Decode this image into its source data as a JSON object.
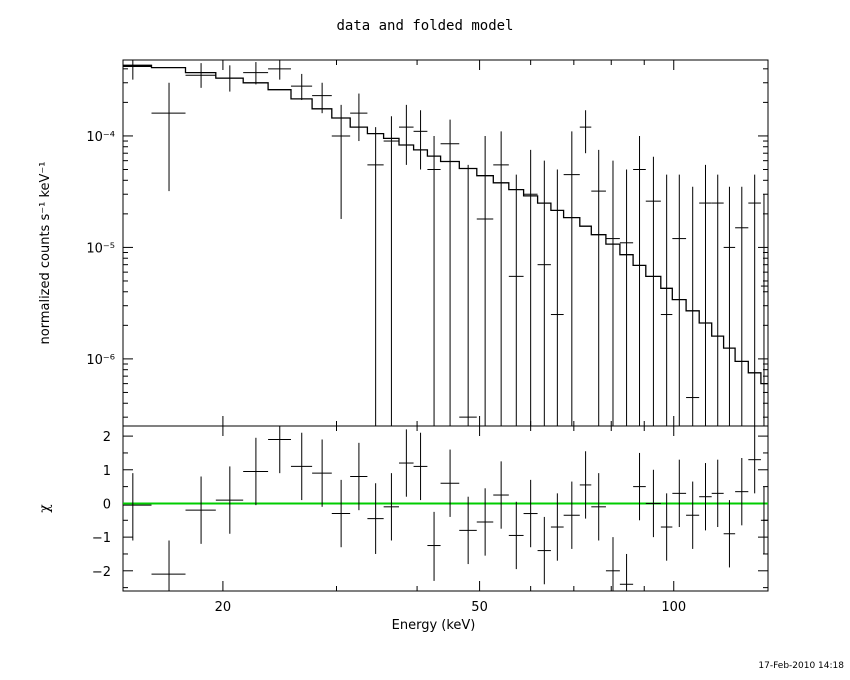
{
  "chart_data": {
    "type": "scatter",
    "title": "data and folded model",
    "timestamp": "17-Feb-2010 14:18",
    "xlabel": "Energy (keV)",
    "xscale": "log",
    "xlim": [
      14.0,
      140.0
    ],
    "xticks": [
      20,
      50,
      100
    ],
    "top_panel": {
      "ylabel": "normalized counts s⁻¹ keV⁻¹",
      "yscale": "log",
      "ylim": [
        2.5e-07,
        0.00048
      ],
      "ytick_labels": [
        "10⁻⁴",
        "10⁻⁵",
        "10⁻⁶"
      ],
      "yticks": [
        0.0001,
        1e-05,
        1e-06
      ],
      "data": [
        {
          "x": 14.5,
          "xlo": 14.0,
          "xhi": 15.5,
          "y": 0.00042,
          "ylo": 0.00032,
          "yhi": 0.00048
        },
        {
          "x": 16.5,
          "xlo": 15.5,
          "xhi": 17.5,
          "y": 0.00016,
          "ylo": 3.2e-05,
          "yhi": 0.0003
        },
        {
          "x": 18.5,
          "xlo": 17.5,
          "xhi": 19.5,
          "y": 0.00035,
          "ylo": 0.00027,
          "yhi": 0.00045
        },
        {
          "x": 20.5,
          "xlo": 19.5,
          "xhi": 21.5,
          "y": 0.00033,
          "ylo": 0.00025,
          "yhi": 0.00043
        },
        {
          "x": 22.5,
          "xlo": 21.5,
          "xhi": 23.5,
          "y": 0.00037,
          "ylo": 0.00029,
          "yhi": 0.00046
        },
        {
          "x": 24.5,
          "xlo": 23.5,
          "xhi": 25.5,
          "y": 0.0004,
          "ylo": 0.00032,
          "yhi": 0.00048
        },
        {
          "x": 26.5,
          "xlo": 25.5,
          "xhi": 27.5,
          "y": 0.00028,
          "ylo": 0.00021,
          "yhi": 0.00036
        },
        {
          "x": 28.5,
          "xlo": 27.5,
          "xhi": 29.5,
          "y": 0.00023,
          "ylo": 0.00016,
          "yhi": 0.0003
        },
        {
          "x": 30.5,
          "xlo": 29.5,
          "xhi": 31.5,
          "y": 0.0001,
          "ylo": 1.8e-05,
          "yhi": 0.00019
        },
        {
          "x": 32.5,
          "xlo": 31.5,
          "xhi": 33.5,
          "y": 0.00016,
          "ylo": 9e-05,
          "yhi": 0.00024
        },
        {
          "x": 34.5,
          "xlo": 33.5,
          "xhi": 35.5,
          "y": 5.5e-05,
          "ylo": 2.5e-07,
          "yhi": 0.00012
        },
        {
          "x": 36.5,
          "xlo": 35.5,
          "xhi": 37.5,
          "y": 9e-05,
          "ylo": 2.5e-07,
          "yhi": 0.00015
        },
        {
          "x": 38.5,
          "xlo": 37.5,
          "xhi": 39.5,
          "y": 0.00012,
          "ylo": 5.5e-05,
          "yhi": 0.00019
        },
        {
          "x": 40.5,
          "xlo": 39.5,
          "xhi": 41.5,
          "y": 0.00011,
          "ylo": 5e-05,
          "yhi": 0.00017
        },
        {
          "x": 42.5,
          "xlo": 41.5,
          "xhi": 43.5,
          "y": 5e-05,
          "ylo": 2.5e-07,
          "yhi": 0.0001
        },
        {
          "x": 45.0,
          "xlo": 43.5,
          "xhi": 46.5,
          "y": 8.5e-05,
          "ylo": 2.5e-07,
          "yhi": 0.00014
        },
        {
          "x": 48.0,
          "xlo": 46.5,
          "xhi": 49.5,
          "y": 3e-07,
          "ylo": 2.5e-07,
          "yhi": 5.5e-05
        },
        {
          "x": 51.0,
          "xlo": 49.5,
          "xhi": 52.5,
          "y": 1.8e-05,
          "ylo": 2.5e-07,
          "yhi": 0.0001
        },
        {
          "x": 54.0,
          "xlo": 52.5,
          "xhi": 55.5,
          "y": 5.5e-05,
          "ylo": 2.5e-07,
          "yhi": 0.00011
        },
        {
          "x": 57.0,
          "xlo": 55.5,
          "xhi": 58.5,
          "y": 5.5e-06,
          "ylo": 2.5e-07,
          "yhi": 4.5e-05
        },
        {
          "x": 60.0,
          "xlo": 58.5,
          "xhi": 61.5,
          "y": 3e-05,
          "ylo": 2.5e-07,
          "yhi": 7.5e-05
        },
        {
          "x": 63.0,
          "xlo": 61.5,
          "xhi": 64.5,
          "y": 7e-06,
          "ylo": 2.5e-07,
          "yhi": 6e-05
        },
        {
          "x": 66.0,
          "xlo": 64.5,
          "xhi": 67.5,
          "y": 2.5e-06,
          "ylo": 2.5e-07,
          "yhi": 5e-05
        },
        {
          "x": 69.5,
          "xlo": 67.5,
          "xhi": 71.5,
          "y": 4.5e-05,
          "ylo": 2.5e-07,
          "yhi": 0.00011
        },
        {
          "x": 73.0,
          "xlo": 71.5,
          "xhi": 74.5,
          "y": 0.00012,
          "ylo": 7e-05,
          "yhi": 0.00017
        },
        {
          "x": 76.5,
          "xlo": 74.5,
          "xhi": 78.5,
          "y": 3.2e-05,
          "ylo": 2.5e-07,
          "yhi": 7.5e-05
        },
        {
          "x": 80.5,
          "xlo": 78.5,
          "xhi": 82.5,
          "y": 1.2e-05,
          "ylo": 2.5e-07,
          "yhi": 6e-05
        },
        {
          "x": 84.5,
          "xlo": 82.5,
          "xhi": 86.5,
          "y": 1.1e-05,
          "ylo": 2.5e-07,
          "yhi": 5e-05
        },
        {
          "x": 88.5,
          "xlo": 86.5,
          "xhi": 90.5,
          "y": 5e-05,
          "ylo": 2.5e-07,
          "yhi": 0.0001
        },
        {
          "x": 93.0,
          "xlo": 90.5,
          "xhi": 95.5,
          "y": 2.6e-05,
          "ylo": 2.5e-07,
          "yhi": 6.5e-05
        },
        {
          "x": 97.5,
          "xlo": 95.5,
          "xhi": 99.5,
          "y": 2.5e-06,
          "ylo": 2.5e-07,
          "yhi": 4.5e-05
        },
        {
          "x": 102.0,
          "xlo": 99.5,
          "xhi": 104.5,
          "y": 1.2e-05,
          "ylo": 2.5e-07,
          "yhi": 4.5e-05
        },
        {
          "x": 107.0,
          "xlo": 104.5,
          "xhi": 109.5,
          "y": 4.5e-07,
          "ylo": 2.5e-07,
          "yhi": 3.5e-05
        },
        {
          "x": 112.0,
          "xlo": 109.5,
          "xhi": 114.5,
          "y": 2.5e-05,
          "ylo": 2.5e-07,
          "yhi": 5.5e-05
        },
        {
          "x": 117.0,
          "xlo": 114.5,
          "xhi": 119.5,
          "y": 2.5e-05,
          "ylo": 2.5e-07,
          "yhi": 4.5e-05
        },
        {
          "x": 122.0,
          "xlo": 119.5,
          "xhi": 124.5,
          "y": 1e-05,
          "ylo": 2.5e-07,
          "yhi": 3.5e-05
        },
        {
          "x": 127.5,
          "xlo": 124.5,
          "xhi": 130.5,
          "y": 1.5e-05,
          "ylo": 2.5e-07,
          "yhi": 3.5e-05
        },
        {
          "x": 133.5,
          "xlo": 130.5,
          "xhi": 136.5,
          "y": 2.5e-05,
          "ylo": 2.5e-07,
          "yhi": 4.5e-05
        },
        {
          "x": 138.0,
          "xlo": 136.5,
          "xhi": 140.0,
          "y": 4.5e-06,
          "ylo": 2.5e-07,
          "yhi": 3e-05
        }
      ],
      "model": [
        {
          "x0": 14.0,
          "x1": 15.5,
          "y": 0.00043
        },
        {
          "x0": 15.5,
          "x1": 17.5,
          "y": 0.00041
        },
        {
          "x0": 17.5,
          "x1": 19.5,
          "y": 0.00037
        },
        {
          "x0": 19.5,
          "x1": 21.5,
          "y": 0.00033
        },
        {
          "x0": 21.5,
          "x1": 23.5,
          "y": 0.0003
        },
        {
          "x0": 23.5,
          "x1": 25.5,
          "y": 0.00026
        },
        {
          "x0": 25.5,
          "x1": 27.5,
          "y": 0.000215
        },
        {
          "x0": 27.5,
          "x1": 29.5,
          "y": 0.000175
        },
        {
          "x0": 29.5,
          "x1": 31.5,
          "y": 0.000145
        },
        {
          "x0": 31.5,
          "x1": 33.5,
          "y": 0.00012
        },
        {
          "x0": 33.5,
          "x1": 35.5,
          "y": 0.000105
        },
        {
          "x0": 35.5,
          "x1": 37.5,
          "y": 9.5e-05
        },
        {
          "x0": 37.5,
          "x1": 39.5,
          "y": 8.3e-05
        },
        {
          "x0": 39.5,
          "x1": 41.5,
          "y": 7.5e-05
        },
        {
          "x0": 41.5,
          "x1": 43.5,
          "y": 6.6e-05
        },
        {
          "x0": 43.5,
          "x1": 46.5,
          "y": 5.9e-05
        },
        {
          "x0": 46.5,
          "x1": 49.5,
          "y": 5.1e-05
        },
        {
          "x0": 49.5,
          "x1": 52.5,
          "y": 4.4e-05
        },
        {
          "x0": 52.5,
          "x1": 55.5,
          "y": 3.8e-05
        },
        {
          "x0": 55.5,
          "x1": 58.5,
          "y": 3.3e-05
        },
        {
          "x0": 58.5,
          "x1": 61.5,
          "y": 2.9e-05
        },
        {
          "x0": 61.5,
          "x1": 64.5,
          "y": 2.5e-05
        },
        {
          "x0": 64.5,
          "x1": 67.5,
          "y": 2.15e-05
        },
        {
          "x0": 67.5,
          "x1": 71.5,
          "y": 1.85e-05
        },
        {
          "x0": 71.5,
          "x1": 74.5,
          "y": 1.55e-05
        },
        {
          "x0": 74.5,
          "x1": 78.5,
          "y": 1.3e-05
        },
        {
          "x0": 78.5,
          "x1": 82.5,
          "y": 1.07e-05
        },
        {
          "x0": 82.5,
          "x1": 86.5,
          "y": 8.6e-06
        },
        {
          "x0": 86.5,
          "x1": 90.5,
          "y": 6.9e-06
        },
        {
          "x0": 90.5,
          "x1": 95.5,
          "y": 5.5e-06
        },
        {
          "x0": 95.5,
          "x1": 99.5,
          "y": 4.3e-06
        },
        {
          "x0": 99.5,
          "x1": 104.5,
          "y": 3.4e-06
        },
        {
          "x0": 104.5,
          "x1": 109.5,
          "y": 2.7e-06
        },
        {
          "x0": 109.5,
          "x1": 114.5,
          "y": 2.1e-06
        },
        {
          "x0": 114.5,
          "x1": 119.5,
          "y": 1.6e-06
        },
        {
          "x0": 119.5,
          "x1": 124.5,
          "y": 1.25e-06
        },
        {
          "x0": 124.5,
          "x1": 130.5,
          "y": 9.5e-07
        },
        {
          "x0": 130.5,
          "x1": 136.5,
          "y": 7.5e-07
        },
        {
          "x0": 136.5,
          "x1": 140.0,
          "y": 6e-07
        }
      ]
    },
    "bottom_panel": {
      "ylabel": "χ",
      "ylim": [
        -2.6,
        2.3
      ],
      "yticks": [
        -2,
        -1,
        0,
        1,
        2
      ],
      "ytick_labels": [
        "−2",
        "−1",
        "0",
        "1",
        "2"
      ],
      "reference_line": {
        "y": 0,
        "color": "#00cc00"
      },
      "data": [
        {
          "x": 14.5,
          "xlo": 14.0,
          "xhi": 15.5,
          "y": -0.05,
          "ylo": -1.1,
          "yhi": 0.9
        },
        {
          "x": 16.5,
          "xlo": 15.5,
          "xhi": 17.5,
          "y": -2.1,
          "ylo": -2.6,
          "yhi": -1.1
        },
        {
          "x": 18.5,
          "xlo": 17.5,
          "xhi": 19.5,
          "y": -0.2,
          "ylo": -1.2,
          "yhi": 0.8
        },
        {
          "x": 20.5,
          "xlo": 19.5,
          "xhi": 21.5,
          "y": 0.1,
          "ylo": -0.9,
          "yhi": 1.1
        },
        {
          "x": 22.5,
          "xlo": 21.5,
          "xhi": 23.5,
          "y": 0.95,
          "ylo": -0.05,
          "yhi": 1.95
        },
        {
          "x": 24.5,
          "xlo": 23.5,
          "xhi": 25.5,
          "y": 1.9,
          "ylo": 0.9,
          "yhi": 2.3
        },
        {
          "x": 26.5,
          "xlo": 25.5,
          "xhi": 27.5,
          "y": 1.1,
          "ylo": 0.1,
          "yhi": 2.1
        },
        {
          "x": 28.5,
          "xlo": 27.5,
          "xhi": 29.5,
          "y": 0.9,
          "ylo": -0.1,
          "yhi": 1.9
        },
        {
          "x": 30.5,
          "xlo": 29.5,
          "xhi": 31.5,
          "y": -0.3,
          "ylo": -1.3,
          "yhi": 0.7
        },
        {
          "x": 32.5,
          "xlo": 31.5,
          "xhi": 33.5,
          "y": 0.8,
          "ylo": -0.2,
          "yhi": 1.8
        },
        {
          "x": 34.5,
          "xlo": 33.5,
          "xhi": 35.5,
          "y": -0.45,
          "ylo": -1.5,
          "yhi": 0.6
        },
        {
          "x": 36.5,
          "xlo": 35.5,
          "xhi": 37.5,
          "y": -0.1,
          "ylo": -1.1,
          "yhi": 0.9
        },
        {
          "x": 38.5,
          "xlo": 37.5,
          "xhi": 39.5,
          "y": 1.2,
          "ylo": 0.2,
          "yhi": 2.2
        },
        {
          "x": 40.5,
          "xlo": 39.5,
          "xhi": 41.5,
          "y": 1.1,
          "ylo": 0.1,
          "yhi": 2.1
        },
        {
          "x": 42.5,
          "xlo": 41.5,
          "xhi": 43.5,
          "y": -1.25,
          "ylo": -2.3,
          "yhi": -0.25
        },
        {
          "x": 45.0,
          "xlo": 43.5,
          "xhi": 46.5,
          "y": 0.6,
          "ylo": -0.4,
          "yhi": 1.6
        },
        {
          "x": 48.0,
          "xlo": 46.5,
          "xhi": 49.5,
          "y": -0.8,
          "ylo": -1.8,
          "yhi": 0.2
        },
        {
          "x": 51.0,
          "xlo": 49.5,
          "xhi": 52.5,
          "y": -0.55,
          "ylo": -1.55,
          "yhi": 0.45
        },
        {
          "x": 54.0,
          "xlo": 52.5,
          "xhi": 55.5,
          "y": 0.25,
          "ylo": -0.75,
          "yhi": 1.25
        },
        {
          "x": 57.0,
          "xlo": 55.5,
          "xhi": 58.5,
          "y": -0.95,
          "ylo": -1.95,
          "yhi": 0.05
        },
        {
          "x": 60.0,
          "xlo": 58.5,
          "xhi": 61.5,
          "y": -0.3,
          "ylo": -1.3,
          "yhi": 0.7
        },
        {
          "x": 63.0,
          "xlo": 61.5,
          "xhi": 64.5,
          "y": -1.4,
          "ylo": -2.4,
          "yhi": -0.4
        },
        {
          "x": 66.0,
          "xlo": 64.5,
          "xhi": 67.5,
          "y": -0.7,
          "ylo": -1.7,
          "yhi": 0.3
        },
        {
          "x": 69.5,
          "xlo": 67.5,
          "xhi": 71.5,
          "y": -0.35,
          "ylo": -1.35,
          "yhi": 0.65
        },
        {
          "x": 73.0,
          "xlo": 71.5,
          "xhi": 74.5,
          "y": 0.55,
          "ylo": -0.45,
          "yhi": 1.55
        },
        {
          "x": 76.5,
          "xlo": 74.5,
          "xhi": 78.5,
          "y": -0.1,
          "ylo": -1.1,
          "yhi": 0.9
        },
        {
          "x": 80.5,
          "xlo": 78.5,
          "xhi": 82.5,
          "y": -2.0,
          "ylo": -2.6,
          "yhi": -1.0
        },
        {
          "x": 84.5,
          "xlo": 82.5,
          "xhi": 86.5,
          "y": -2.4,
          "ylo": -2.6,
          "yhi": -1.5
        },
        {
          "x": 88.5,
          "xlo": 86.5,
          "xhi": 90.5,
          "y": 0.5,
          "ylo": -0.5,
          "yhi": 1.5
        },
        {
          "x": 93.0,
          "xlo": 90.5,
          "xhi": 95.5,
          "y": 0.0,
          "ylo": -1.0,
          "yhi": 1.0
        },
        {
          "x": 97.5,
          "xlo": 95.5,
          "xhi": 99.5,
          "y": -0.7,
          "ylo": -1.7,
          "yhi": 0.3
        },
        {
          "x": 102.0,
          "xlo": 99.5,
          "xhi": 104.5,
          "y": 0.3,
          "ylo": -0.7,
          "yhi": 1.3
        },
        {
          "x": 107.0,
          "xlo": 104.5,
          "xhi": 109.5,
          "y": -0.35,
          "ylo": -1.35,
          "yhi": 0.65
        },
        {
          "x": 112.0,
          "xlo": 109.5,
          "xhi": 114.5,
          "y": 0.2,
          "ylo": -0.8,
          "yhi": 1.2
        },
        {
          "x": 117.0,
          "xlo": 114.5,
          "xhi": 119.5,
          "y": 0.3,
          "ylo": -0.7,
          "yhi": 1.3
        },
        {
          "x": 122.0,
          "xlo": 119.5,
          "xhi": 124.5,
          "y": -0.9,
          "ylo": -1.9,
          "yhi": 0.1
        },
        {
          "x": 127.5,
          "xlo": 124.5,
          "xhi": 130.5,
          "y": 0.35,
          "ylo": -0.65,
          "yhi": 1.35
        },
        {
          "x": 133.5,
          "xlo": 130.5,
          "xhi": 136.5,
          "y": 1.3,
          "ylo": 0.3,
          "yhi": 2.3
        },
        {
          "x": 138.0,
          "xlo": 136.5,
          "xhi": 140.0,
          "y": -0.5,
          "ylo": -1.5,
          "yhi": 0.5
        }
      ]
    },
    "colors": {
      "axes": "#000000",
      "data": "#000000",
      "model": "#000000",
      "zero_line": "#00cc00"
    }
  }
}
